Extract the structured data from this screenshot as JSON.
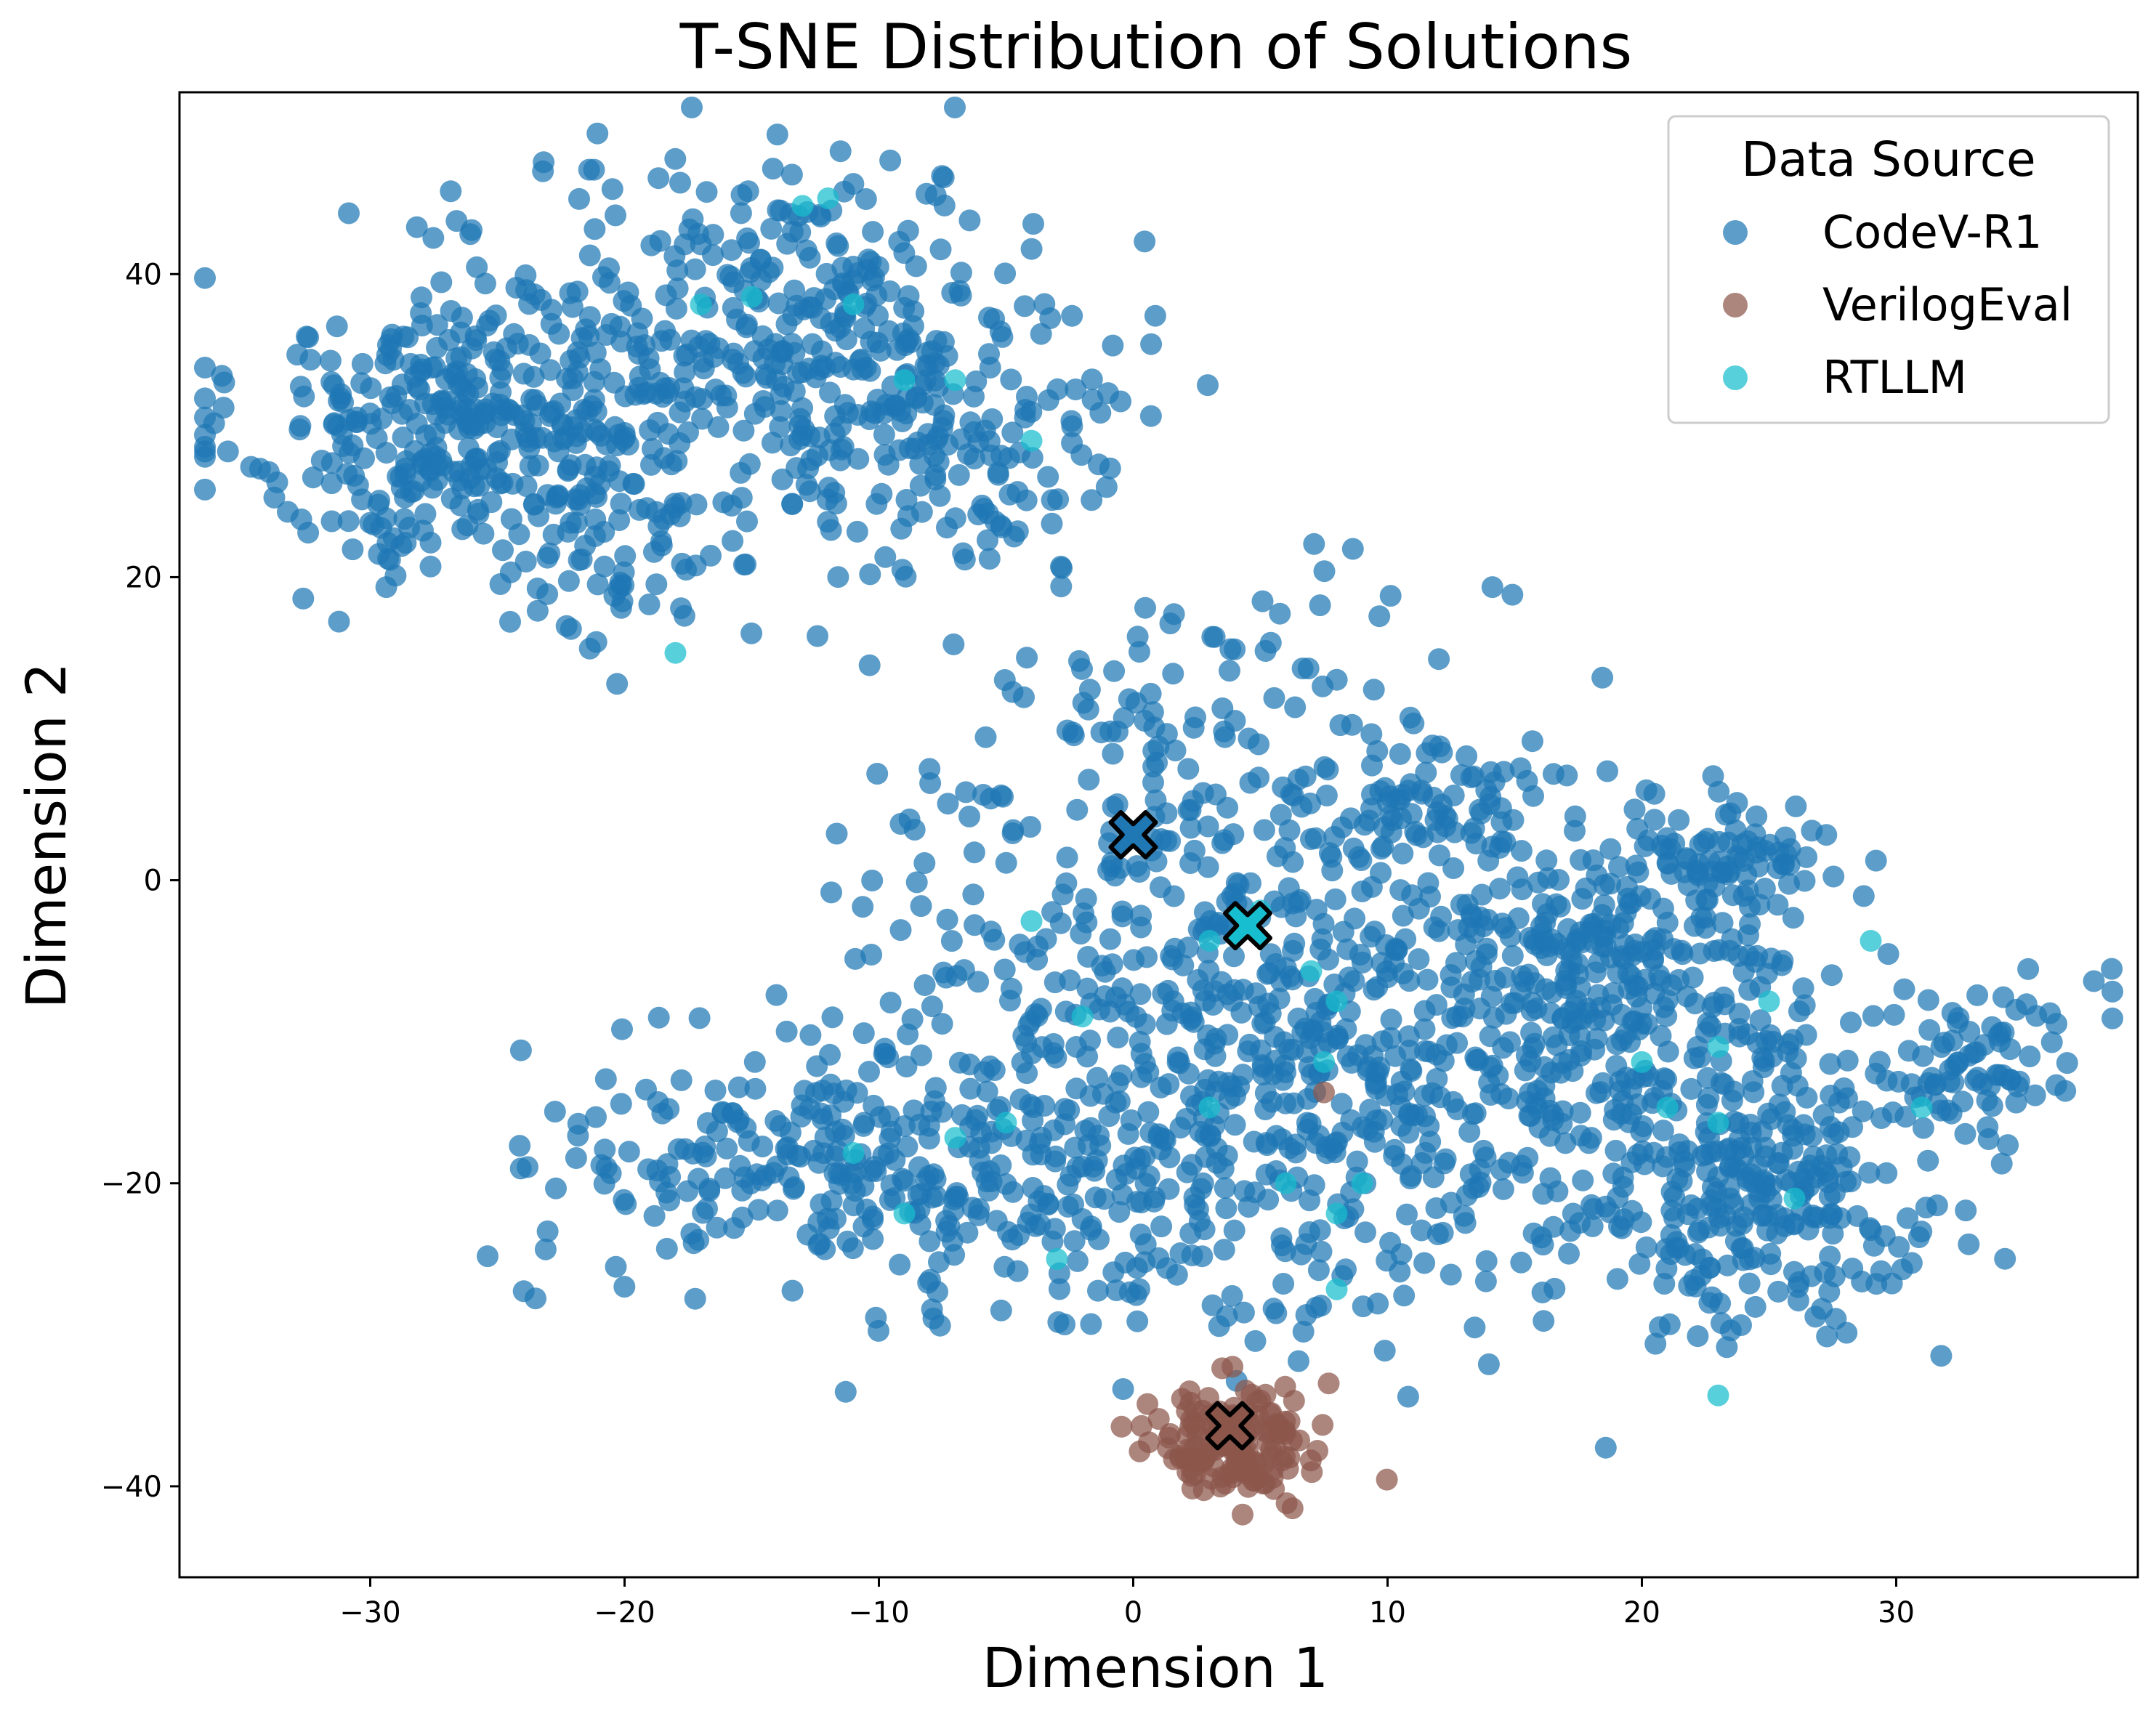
{
  "chart_data": {
    "type": "scatter",
    "title": "T-SNE Distribution of Solutions",
    "xlabel": "Dimension 1",
    "ylabel": "Dimension 2",
    "xlim": [
      -37.5,
      39.5
    ],
    "ylim": [
      -46,
      52
    ],
    "xticks": [
      -30,
      -20,
      -10,
      0,
      10,
      20,
      30
    ],
    "yticks": [
      -40,
      -20,
      0,
      20,
      40
    ],
    "xtick_labels": [
      "−30",
      "−20",
      "−10",
      "0",
      "10",
      "20",
      "30"
    ],
    "ytick_labels": [
      "−40",
      "−20",
      "0",
      "20",
      "40"
    ],
    "grid": false,
    "legend": {
      "title": "Data Source",
      "placement": "top-right",
      "entries": [
        "CodeV-R1",
        "VerilogEval",
        "RTLLM"
      ]
    },
    "colors": {
      "CodeV-R1": "#1f77b4",
      "VerilogEval": "#8c564b",
      "RTLLM": "#17becf"
    },
    "series": [
      {
        "name": "CodeV-R1",
        "cluster_spec": [
          {
            "cx": -26,
            "cy": 30,
            "sx": 4.5,
            "sy": 5,
            "n": 380
          },
          {
            "cx": -14,
            "cy": 36,
            "sx": 5,
            "sy": 6,
            "n": 300
          },
          {
            "cx": -7,
            "cy": 31,
            "sx": 3.5,
            "sy": 6,
            "n": 160
          },
          {
            "cx": -20,
            "cy": 20,
            "sx": 3,
            "sy": 3,
            "n": 45
          },
          {
            "cx": 3,
            "cy": 8,
            "sx": 6,
            "sy": 6,
            "n": 150
          },
          {
            "cx": -13,
            "cy": -18,
            "sx": 5,
            "sy": 4,
            "n": 210
          },
          {
            "cx": 0,
            "cy": -8,
            "sx": 6,
            "sy": 7,
            "n": 230
          },
          {
            "cx": 6,
            "cy": -16,
            "sx": 6,
            "sy": 7,
            "n": 260
          },
          {
            "cx": 14,
            "cy": -8,
            "sx": 6,
            "sy": 7,
            "n": 230
          },
          {
            "cx": 21,
            "cy": -18,
            "sx": 5,
            "sy": 6,
            "n": 240
          },
          {
            "cx": 26,
            "cy": -22,
            "sx": 3,
            "sy": 4,
            "n": 130
          },
          {
            "cx": 18,
            "cy": -5,
            "sx": 3,
            "sy": 3,
            "n": 110
          },
          {
            "cx": 24,
            "cy": 2,
            "sx": 2,
            "sy": 2,
            "n": 80
          },
          {
            "cx": 33,
            "cy": -12,
            "sx": 2.5,
            "sy": 3,
            "n": 90
          },
          {
            "cx": 11,
            "cy": 5,
            "sx": 2.5,
            "sy": 2.5,
            "n": 60
          },
          {
            "cx": -3,
            "cy": -22,
            "sx": 5,
            "sy": 4,
            "n": 110
          }
        ]
      },
      {
        "name": "VerilogEval",
        "cluster_spec": [
          {
            "cx": 4,
            "cy": -37,
            "sx": 1.6,
            "sy": 1.9,
            "n": 155
          }
        ],
        "extra_points": [
          [
            7.5,
            -14
          ]
        ]
      },
      {
        "name": "RTLLM",
        "points": [
          [
            -17,
            38
          ],
          [
            -15,
            38.5
          ],
          [
            -13,
            44.5
          ],
          [
            -12,
            45
          ],
          [
            -11,
            38
          ],
          [
            -9,
            33
          ],
          [
            -7,
            33
          ],
          [
            -4,
            29
          ],
          [
            -18,
            15
          ],
          [
            -4,
            -2.7
          ],
          [
            -2,
            -9
          ],
          [
            3,
            -4
          ],
          [
            5,
            -2
          ],
          [
            7,
            -6
          ],
          [
            8,
            -8
          ],
          [
            7.5,
            -12
          ],
          [
            8,
            -22
          ],
          [
            8,
            -27
          ],
          [
            9,
            -20
          ],
          [
            3,
            -15
          ],
          [
            6,
            -20
          ],
          [
            -11,
            -18
          ],
          [
            -9,
            -22
          ],
          [
            -7,
            -17
          ],
          [
            -5,
            -16
          ],
          [
            -3,
            -25
          ],
          [
            20,
            -12
          ],
          [
            21,
            -15
          ],
          [
            23,
            -11
          ],
          [
            23,
            -16
          ],
          [
            25,
            -8
          ],
          [
            26,
            -21
          ],
          [
            29,
            -4
          ],
          [
            31,
            -15
          ],
          [
            23,
            -34
          ]
        ]
      }
    ],
    "centroids": [
      {
        "series": "CodeV-R1",
        "x": 0,
        "y": 3
      },
      {
        "series": "RTLLM",
        "x": 4.5,
        "y": -3
      },
      {
        "series": "VerilogEval",
        "x": 3.8,
        "y": -36
      }
    ]
  }
}
